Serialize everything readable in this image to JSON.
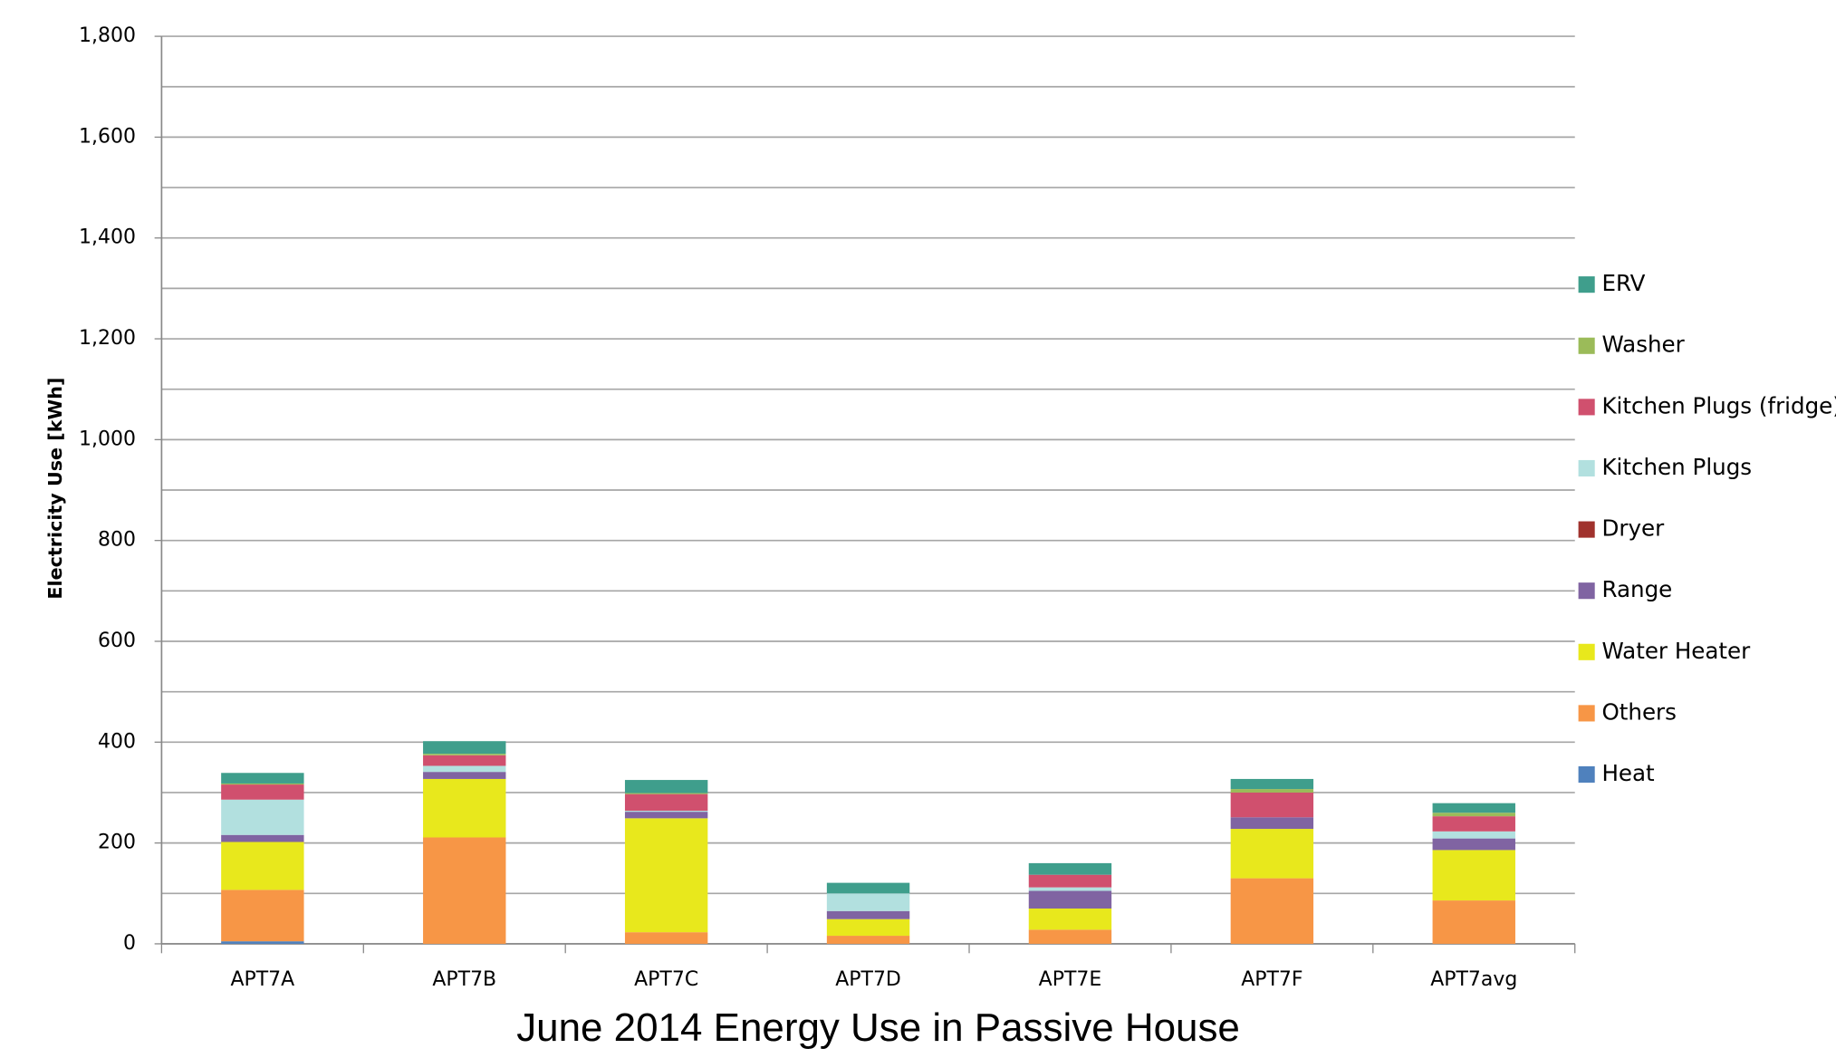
{
  "chart_data": {
    "type": "stacked_bar",
    "title": "June 2014 Energy Use in Passive House",
    "y_label": "Electricity Use [kWh]",
    "categories": [
      "APT7A",
      "APT7B",
      "APT7C",
      "APT7D",
      "APT7E",
      "APT7F",
      "APT7avg"
    ],
    "series": [
      {
        "name": "Heat",
        "color": "#4f81bd",
        "values": [
          5,
          0,
          0,
          0,
          0,
          0,
          0
        ]
      },
      {
        "name": "Others",
        "color": "#f79646",
        "values": [
          102,
          211,
          23,
          16,
          28,
          130,
          86
        ]
      },
      {
        "name": "Water Heater",
        "color": "#e8e81c",
        "values": [
          95,
          116,
          226,
          33,
          42,
          98,
          100
        ]
      },
      {
        "name": "Range",
        "color": "#8064a2",
        "values": [
          14,
          14,
          13,
          16,
          35,
          23,
          23
        ]
      },
      {
        "name": "Dryer",
        "color": "#a0322d",
        "values": [
          0,
          0,
          0,
          0,
          0,
          0,
          0
        ]
      },
      {
        "name": "Kitchen Plugs",
        "color": "#b2e0df",
        "values": [
          70,
          12,
          2,
          35,
          7,
          0,
          14
        ]
      },
      {
        "name": "Kitchen Plugs (fridge)",
        "color": "#d0506e",
        "values": [
          30,
          21,
          33,
          0,
          25,
          49,
          30
        ]
      },
      {
        "name": "Washer",
        "color": "#9bbb59",
        "values": [
          2,
          3,
          2,
          0,
          0,
          7,
          7
        ]
      },
      {
        "name": "ERV",
        "color": "#3f9e8c",
        "values": [
          21,
          25,
          26,
          21,
          23,
          20,
          19
        ]
      }
    ],
    "ylim": [
      0,
      1800
    ],
    "yticks": [
      0,
      {
        "value": 200,
        "label": "200"
      },
      400,
      600,
      800,
      {
        "value": 1000,
        "label": "1,000"
      },
      {
        "value": 1200,
        "label": "1,200"
      },
      {
        "value": 1400,
        "label": "1,400"
      },
      {
        "value": 1600,
        "label": "1,600"
      },
      {
        "value": 1800,
        "label": "1,800"
      }
    ],
    "y_minor_ticks": [
      100,
      300,
      500,
      700,
      900,
      1100,
      1300,
      1500,
      1700
    ],
    "grid": true,
    "legend": "right"
  }
}
